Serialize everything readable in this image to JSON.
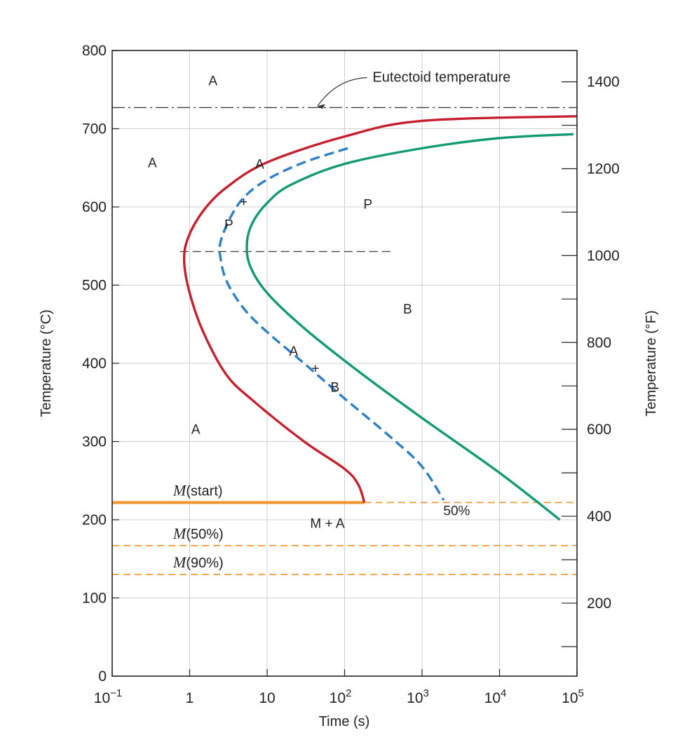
{
  "chart_data": {
    "type": "line",
    "title": "",
    "xlabel": "Time (s)",
    "ylabel_left": "Temperature (°C)",
    "ylabel_right": "Temperature (°F)",
    "x_scale": "log",
    "xlim": [
      0.1,
      100000
    ],
    "ylim": [
      0,
      800
    ],
    "grid": true,
    "x_ticks": [
      {
        "value": 0.1,
        "base": "10",
        "exp": "−1"
      },
      {
        "value": 1,
        "base": "1",
        "exp": ""
      },
      {
        "value": 10,
        "base": "10",
        "exp": ""
      },
      {
        "value": 100,
        "base": "10",
        "exp": "2"
      },
      {
        "value": 1000,
        "base": "10",
        "exp": "3"
      },
      {
        "value": 10000,
        "base": "10",
        "exp": "4"
      },
      {
        "value": 100000,
        "base": "10",
        "exp": "5"
      }
    ],
    "y_ticks_left": [
      "0",
      "100",
      "200",
      "300",
      "400",
      "500",
      "600",
      "700",
      "800"
    ],
    "y_ticks_right_labels": [
      {
        "value": 200,
        "label": "200"
      },
      {
        "value": 400,
        "label": "400"
      },
      {
        "value": 600,
        "label": "600"
      },
      {
        "value": 800,
        "label": "800"
      },
      {
        "value": 1000,
        "label": "1000"
      },
      {
        "value": 1200,
        "label": "1200"
      },
      {
        "value": 1400,
        "label": "1400"
      }
    ],
    "y_ticks_right_minor": [
      100,
      300,
      500,
      700,
      900,
      1100,
      1300
    ],
    "eutectoid": {
      "label": "Eutectoid temperature",
      "temp": 727,
      "arrow_at": [
        42,
        727
      ],
      "label_at": [
        230,
        760
      ]
    },
    "nose_line": {
      "temp": 543,
      "x_range": [
        0.75,
        400
      ]
    },
    "series": [
      {
        "role": "start",
        "color": "#c4202e",
        "style": "solid",
        "points": [
          [
            100000,
            716
          ],
          [
            1000,
            710
          ],
          [
            100,
            690
          ],
          [
            10,
            657
          ],
          [
            3,
            625
          ],
          [
            1.5,
            595
          ],
          [
            0.95,
            560
          ],
          [
            0.85,
            530
          ],
          [
            1.0,
            490
          ],
          [
            1.5,
            440
          ],
          [
            3,
            385
          ],
          [
            7,
            350
          ],
          [
            30,
            300
          ],
          [
            100,
            265
          ],
          [
            150,
            245
          ],
          [
            180,
            222
          ]
        ]
      },
      {
        "role": "50%",
        "color": "#2e7fc4",
        "style": "dashed",
        "points": [
          [
            110,
            675
          ],
          [
            30,
            657
          ],
          [
            10,
            635
          ],
          [
            5,
            612
          ],
          [
            3.3,
            585
          ],
          [
            2.5,
            555
          ],
          [
            2.5,
            535
          ],
          [
            3,
            505
          ],
          [
            5,
            470
          ],
          [
            10,
            440
          ],
          [
            30,
            400
          ],
          [
            100,
            355
          ],
          [
            400,
            305
          ],
          [
            1000,
            268
          ],
          [
            1900,
            225
          ]
        ]
      },
      {
        "role": "finish",
        "color": "#139a72",
        "style": "solid",
        "points": [
          [
            90000,
            693
          ],
          [
            10000,
            688
          ],
          [
            1000,
            675
          ],
          [
            100,
            655
          ],
          [
            20,
            628
          ],
          [
            10,
            605
          ],
          [
            6.5,
            580
          ],
          [
            5.5,
            555
          ],
          [
            6,
            525
          ],
          [
            10,
            490
          ],
          [
            30,
            445
          ],
          [
            150,
            390
          ],
          [
            1000,
            330
          ],
          [
            10000,
            260
          ],
          [
            60000,
            200
          ]
        ]
      }
    ],
    "martensite_lines": [
      {
        "label_italic": "M",
        "label_rest": "(start)",
        "temp": 222,
        "solid_to": 180
      },
      {
        "label_italic": "M",
        "label_rest": "(50%)",
        "temp": 167
      },
      {
        "label_italic": "M",
        "label_rest": "(90%)",
        "temp": 130
      }
    ],
    "martensite_color": "#f2922a",
    "annotations": [
      {
        "text": "A",
        "x": 2.0,
        "y": 762
      },
      {
        "text": "A",
        "x": 0.33,
        "y": 657
      },
      {
        "text": "A",
        "x": 8.0,
        "y": 655
      },
      {
        "text": "+",
        "x": 5.0,
        "y": 607
      },
      {
        "text": "P",
        "x": 3.2,
        "y": 578
      },
      {
        "text": "P",
        "x": 200,
        "y": 604
      },
      {
        "text": "B",
        "x": 650,
        "y": 470
      },
      {
        "text": "A",
        "x": 22,
        "y": 416
      },
      {
        "text": "+",
        "x": 42,
        "y": 394
      },
      {
        "text": "B",
        "x": 75,
        "y": 370
      },
      {
        "text": "A",
        "x": 1.2,
        "y": 316
      },
      {
        "text": "M + A",
        "x": 60,
        "y": 196
      },
      {
        "text": "50%",
        "x": 2800,
        "y": 212
      }
    ]
  }
}
